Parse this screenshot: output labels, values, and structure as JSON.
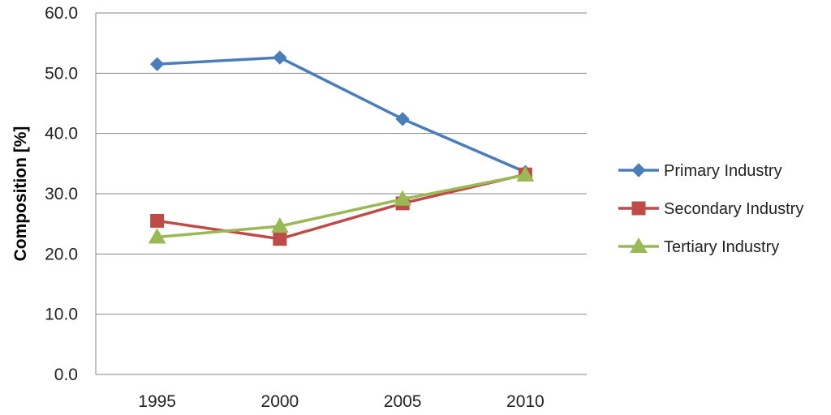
{
  "chart_data": {
    "type": "line",
    "title": "",
    "xlabel": "",
    "ylabel": "Composition [%]",
    "categories": [
      "1995",
      "2000",
      "2005",
      "2010"
    ],
    "ylim": [
      0,
      60
    ],
    "yticks": [
      "0.0",
      "10.0",
      "20.0",
      "30.0",
      "40.0",
      "50.0",
      "60.0"
    ],
    "grid": true,
    "legend_position": "right",
    "series": [
      {
        "name": "Primary Industry",
        "values": [
          51.5,
          52.6,
          42.4,
          33.6
        ],
        "color": "#4a7ebb",
        "marker": "diamond"
      },
      {
        "name": "Secondary Industry",
        "values": [
          25.5,
          22.5,
          28.4,
          33.2
        ],
        "color": "#be4b48",
        "marker": "square"
      },
      {
        "name": "Tertiary Industry",
        "values": [
          22.8,
          24.6,
          29.1,
          33.1
        ],
        "color": "#98b954",
        "marker": "triangle"
      }
    ]
  }
}
